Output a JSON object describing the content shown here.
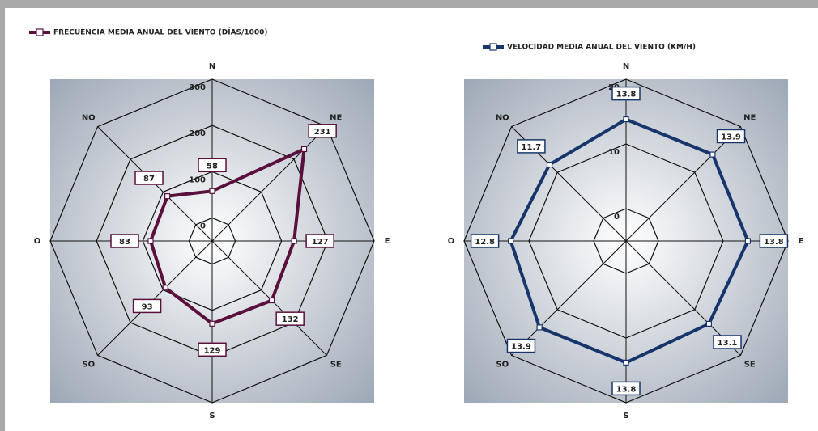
{
  "chart_data": [
    {
      "type": "radar",
      "categories": [
        "N",
        "NE",
        "E",
        "SE",
        "S",
        "SO",
        "O",
        "NO"
      ],
      "series": [
        {
          "name": "FRECUENCIA MEDIA ANUAL DEL VIENTO (DÍAS/1000)",
          "color": "#5a0f3c",
          "values": [
            58,
            231,
            127,
            132,
            129,
            93,
            83,
            87
          ]
        }
      ],
      "rlim": [
        -50,
        300
      ],
      "rticks": [
        0,
        100,
        200,
        300
      ],
      "grid": true
    },
    {
      "type": "radar",
      "categories": [
        "N",
        "NE",
        "E",
        "SE",
        "S",
        "SO",
        "O",
        "NO"
      ],
      "series": [
        {
          "name": "VELOCIDAD MEDIA ANUAL DEL VIENTO (KM/H)",
          "color": "#17356b",
          "values": [
            13.8,
            13.9,
            13.8,
            13.1,
            13.8,
            13.9,
            12.8,
            11.7
          ]
        }
      ],
      "rlim": [
        -5,
        20
      ],
      "rticks": [
        0,
        10,
        20
      ],
      "grid": true
    }
  ]
}
